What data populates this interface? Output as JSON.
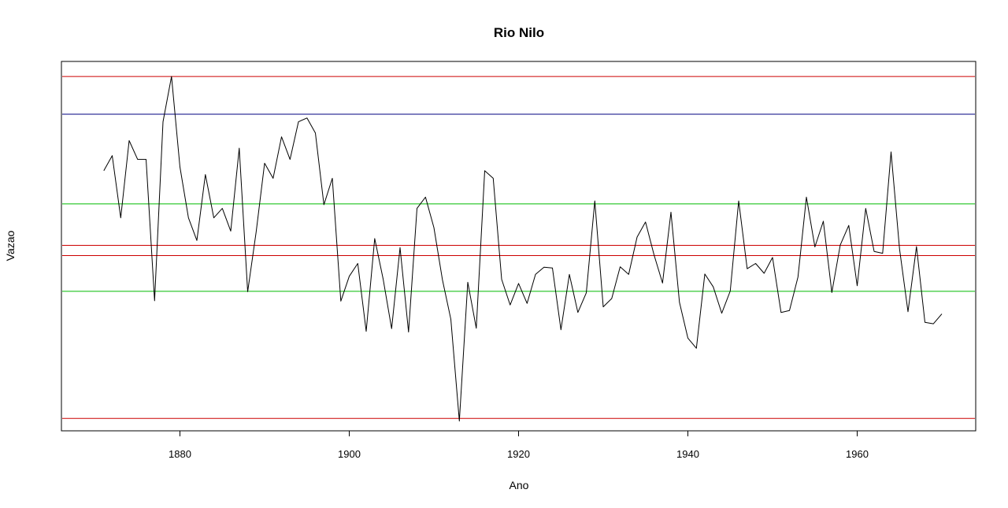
{
  "chart_data": {
    "type": "line",
    "title": "Rio Nilo",
    "xlabel": "Ano",
    "ylabel": "Vazao",
    "xlim": [
      1866,
      1974
    ],
    "ylim": [
      430,
      1410
    ],
    "x_ticks": [
      1880,
      1900,
      1920,
      1940,
      1960
    ],
    "y_ticks_shown": false,
    "grid": false,
    "colors": {
      "series": "#000000",
      "red": "#cc0000",
      "green": "#00bb00",
      "blue": "#000080"
    },
    "series": [
      {
        "x": [
          1871,
          1872,
          1873,
          1874,
          1875,
          1876,
          1877,
          1878,
          1879,
          1880,
          1881,
          1882,
          1883,
          1884,
          1885,
          1886,
          1887,
          1888,
          1889,
          1890,
          1891,
          1892,
          1893,
          1894,
          1895,
          1896,
          1897,
          1898,
          1899,
          1900,
          1901,
          1902,
          1903,
          1904,
          1905,
          1906,
          1907,
          1908,
          1909,
          1910,
          1911,
          1912,
          1913,
          1914,
          1915,
          1916,
          1917,
          1918,
          1919,
          1920,
          1921,
          1922,
          1923,
          1924,
          1925,
          1926,
          1927,
          1928,
          1929,
          1930,
          1931,
          1932,
          1933,
          1934,
          1935,
          1936,
          1937,
          1938,
          1939,
          1940,
          1941,
          1942,
          1943,
          1944,
          1945,
          1946,
          1947,
          1948,
          1949,
          1950,
          1951,
          1952,
          1953,
          1954,
          1955,
          1956,
          1957,
          1958,
          1959,
          1960,
          1961,
          1962,
          1963,
          1964,
          1965,
          1966,
          1967,
          1968,
          1969,
          1970
        ],
        "values": [
          1120,
          1160,
          995,
          1200,
          1150,
          1150,
          775,
          1250,
          1370,
          1130,
          995,
          935,
          1110,
          995,
          1020,
          960,
          1180,
          799,
          958,
          1140,
          1100,
          1210,
          1150,
          1250,
          1260,
          1220,
          1030,
          1100,
          774,
          840,
          874,
          694,
          940,
          833,
          701,
          916,
          692,
          1020,
          1050,
          969,
          831,
          726,
          456,
          824,
          702,
          1120,
          1100,
          832,
          764,
          821,
          768,
          845,
          864,
          862,
          698,
          845,
          744,
          796,
          1040,
          759,
          781,
          865,
          845,
          944,
          984,
          897,
          822,
          1010,
          771,
          676,
          649,
          846,
          812,
          742,
          801,
          1040,
          860,
          874,
          848,
          890,
          744,
          749,
          838,
          1050,
          918,
          986,
          797,
          923,
          975,
          815,
          1020,
          906,
          901,
          1170,
          912,
          746,
          919,
          718,
          714,
          740
        ]
      }
    ],
    "reference_lines": [
      {
        "y": 1370,
        "color": "red"
      },
      {
        "y": 1270,
        "color": "blue"
      },
      {
        "y": 1032,
        "color": "green"
      },
      {
        "y": 922,
        "color": "red"
      },
      {
        "y": 895,
        "color": "red"
      },
      {
        "y": 800,
        "color": "green"
      },
      {
        "y": 463,
        "color": "red"
      }
    ]
  }
}
